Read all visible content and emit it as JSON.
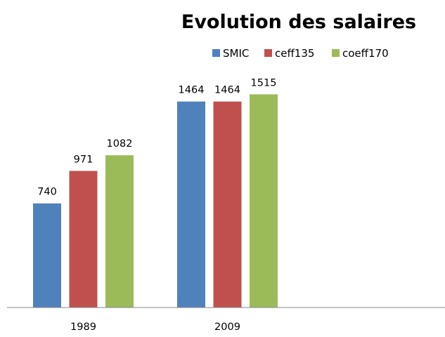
{
  "chart_data": {
    "type": "bar",
    "title": "Evolution des salaires",
    "categories": [
      "1989",
      "2009"
    ],
    "series": [
      {
        "name": "SMIC",
        "values": [
          740,
          1464
        ],
        "color": "#4F81BD"
      },
      {
        "name": "ceff135",
        "values": [
          971,
          1464
        ],
        "color": "#C0504D"
      },
      {
        "name": "coeff170",
        "values": [
          1082,
          1515
        ],
        "color": "#9BBB59"
      }
    ],
    "ylim": [
      0,
      1600
    ],
    "grid": false,
    "legend_position": "top"
  }
}
